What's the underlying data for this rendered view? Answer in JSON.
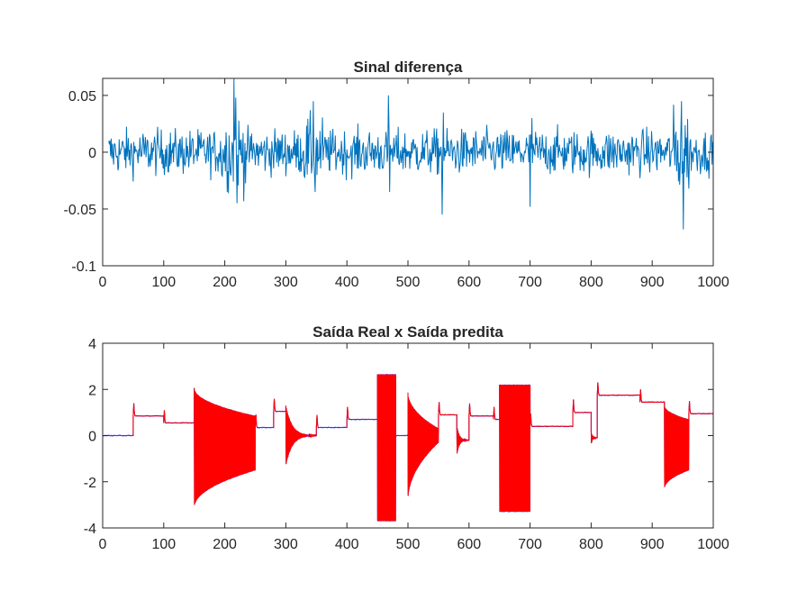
{
  "chart_data": [
    {
      "type": "line",
      "title": "Sinal diferença",
      "xlabel": "",
      "ylabel": "",
      "xlim": [
        0,
        1000
      ],
      "ylim": [
        -0.1,
        0.065
      ],
      "xticks": [
        "0",
        "100",
        "200",
        "300",
        "400",
        "500",
        "600",
        "700",
        "800",
        "900",
        "1000"
      ],
      "yticks": [
        "-0.1",
        "-0.05",
        "0",
        "0.05"
      ],
      "grid": false,
      "colors": {
        "series": "#0072BD"
      },
      "series": [
        {
          "noise_regions": [
            {
              "x": [
                10,
                1000
              ],
              "amp": 0.013
            },
            {
              "x": [
                195,
                235
              ],
              "amp": 0.022
            },
            {
              "x": [
                330,
                360
              ],
              "amp": 0.02
            },
            {
              "x": [
                935,
                960
              ],
              "amp": 0.025
            }
          ],
          "peaks": [
            {
              "x": 215,
              "y": 0.065
            },
            {
              "x": 218,
              "y": 0.048
            },
            {
              "x": 220,
              "y": -0.045
            },
            {
              "x": 345,
              "y": 0.045
            },
            {
              "x": 348,
              "y": -0.035
            },
            {
              "x": 468,
              "y": 0.05
            },
            {
              "x": 470,
              "y": -0.035
            },
            {
              "x": 556,
              "y": -0.055
            },
            {
              "x": 558,
              "y": 0.035
            },
            {
              "x": 700,
              "y": -0.048
            },
            {
              "x": 703,
              "y": 0.03
            },
            {
              "x": 948,
              "y": 0.045
            },
            {
              "x": 951,
              "y": -0.068
            }
          ]
        }
      ]
    },
    {
      "type": "line",
      "title": "Saída Real x Saída predita",
      "xlabel": "",
      "ylabel": "",
      "xlim": [
        0,
        1000
      ],
      "ylim": [
        -4,
        4
      ],
      "xticks": [
        "0",
        "100",
        "200",
        "300",
        "400",
        "500",
        "600",
        "700",
        "800",
        "900",
        "1000"
      ],
      "yticks": [
        "-4",
        "-2",
        "0",
        "2",
        "4"
      ],
      "grid": false,
      "colors": {
        "real": "#0000FF",
        "predita": "#FF0000"
      },
      "segments": [
        {
          "x0": 0,
          "x1": 50,
          "kind": "flat",
          "level": 0.0
        },
        {
          "x0": 50,
          "x1": 100,
          "kind": "step",
          "level": 0.85
        },
        {
          "x0": 100,
          "x1": 150,
          "kind": "step",
          "level": 0.55
        },
        {
          "x0": 150,
          "x1": 250,
          "kind": "osc",
          "top": [
            2.05,
            0.85
          ],
          "bottom": [
            -3.1,
            -1.5
          ]
        },
        {
          "x0": 250,
          "x1": 280,
          "kind": "step",
          "level": 0.35
        },
        {
          "x0": 280,
          "x1": 300,
          "kind": "step",
          "level": 1.05
        },
        {
          "x0": 300,
          "x1": 350,
          "kind": "decay",
          "level": 0.0,
          "amp": 1.3
        },
        {
          "x0": 350,
          "x1": 400,
          "kind": "step",
          "level": 0.35
        },
        {
          "x0": 400,
          "x1": 450,
          "kind": "step",
          "level": 0.7
        },
        {
          "x0": 450,
          "x1": 480,
          "kind": "osc",
          "top": [
            2.65,
            2.65
          ],
          "bottom": [
            -3.7,
            -3.7
          ]
        },
        {
          "x0": 480,
          "x1": 500,
          "kind": "flat",
          "level": 0.0
        },
        {
          "x0": 500,
          "x1": 550,
          "kind": "osc",
          "top": [
            1.85,
            0.3
          ],
          "bottom": [
            -2.8,
            -0.3
          ]
        },
        {
          "x0": 550,
          "x1": 580,
          "kind": "step",
          "level": 0.9
        },
        {
          "x0": 580,
          "x1": 600,
          "kind": "decay",
          "level": -0.2,
          "amp": 0.65
        },
        {
          "x0": 600,
          "x1": 640,
          "kind": "step",
          "level": 0.85
        },
        {
          "x0": 640,
          "x1": 650,
          "kind": "step",
          "level": 0.7
        },
        {
          "x0": 650,
          "x1": 700,
          "kind": "osc",
          "top": [
            2.2,
            2.2
          ],
          "bottom": [
            -3.3,
            -3.3
          ]
        },
        {
          "x0": 700,
          "x1": 770,
          "kind": "step",
          "level": 0.4
        },
        {
          "x0": 770,
          "x1": 800,
          "kind": "step",
          "level": 1.0
        },
        {
          "x0": 800,
          "x1": 810,
          "kind": "decay",
          "level": -0.1,
          "amp": 0.3
        },
        {
          "x0": 810,
          "x1": 880,
          "kind": "step",
          "level": 1.75
        },
        {
          "x0": 880,
          "x1": 920,
          "kind": "step",
          "level": 1.45
        },
        {
          "x0": 920,
          "x1": 960,
          "kind": "osc",
          "top": [
            1.3,
            0.7
          ],
          "bottom": [
            -2.3,
            -1.5
          ]
        },
        {
          "x0": 960,
          "x1": 1000,
          "kind": "step",
          "level": 0.95
        }
      ]
    }
  ]
}
